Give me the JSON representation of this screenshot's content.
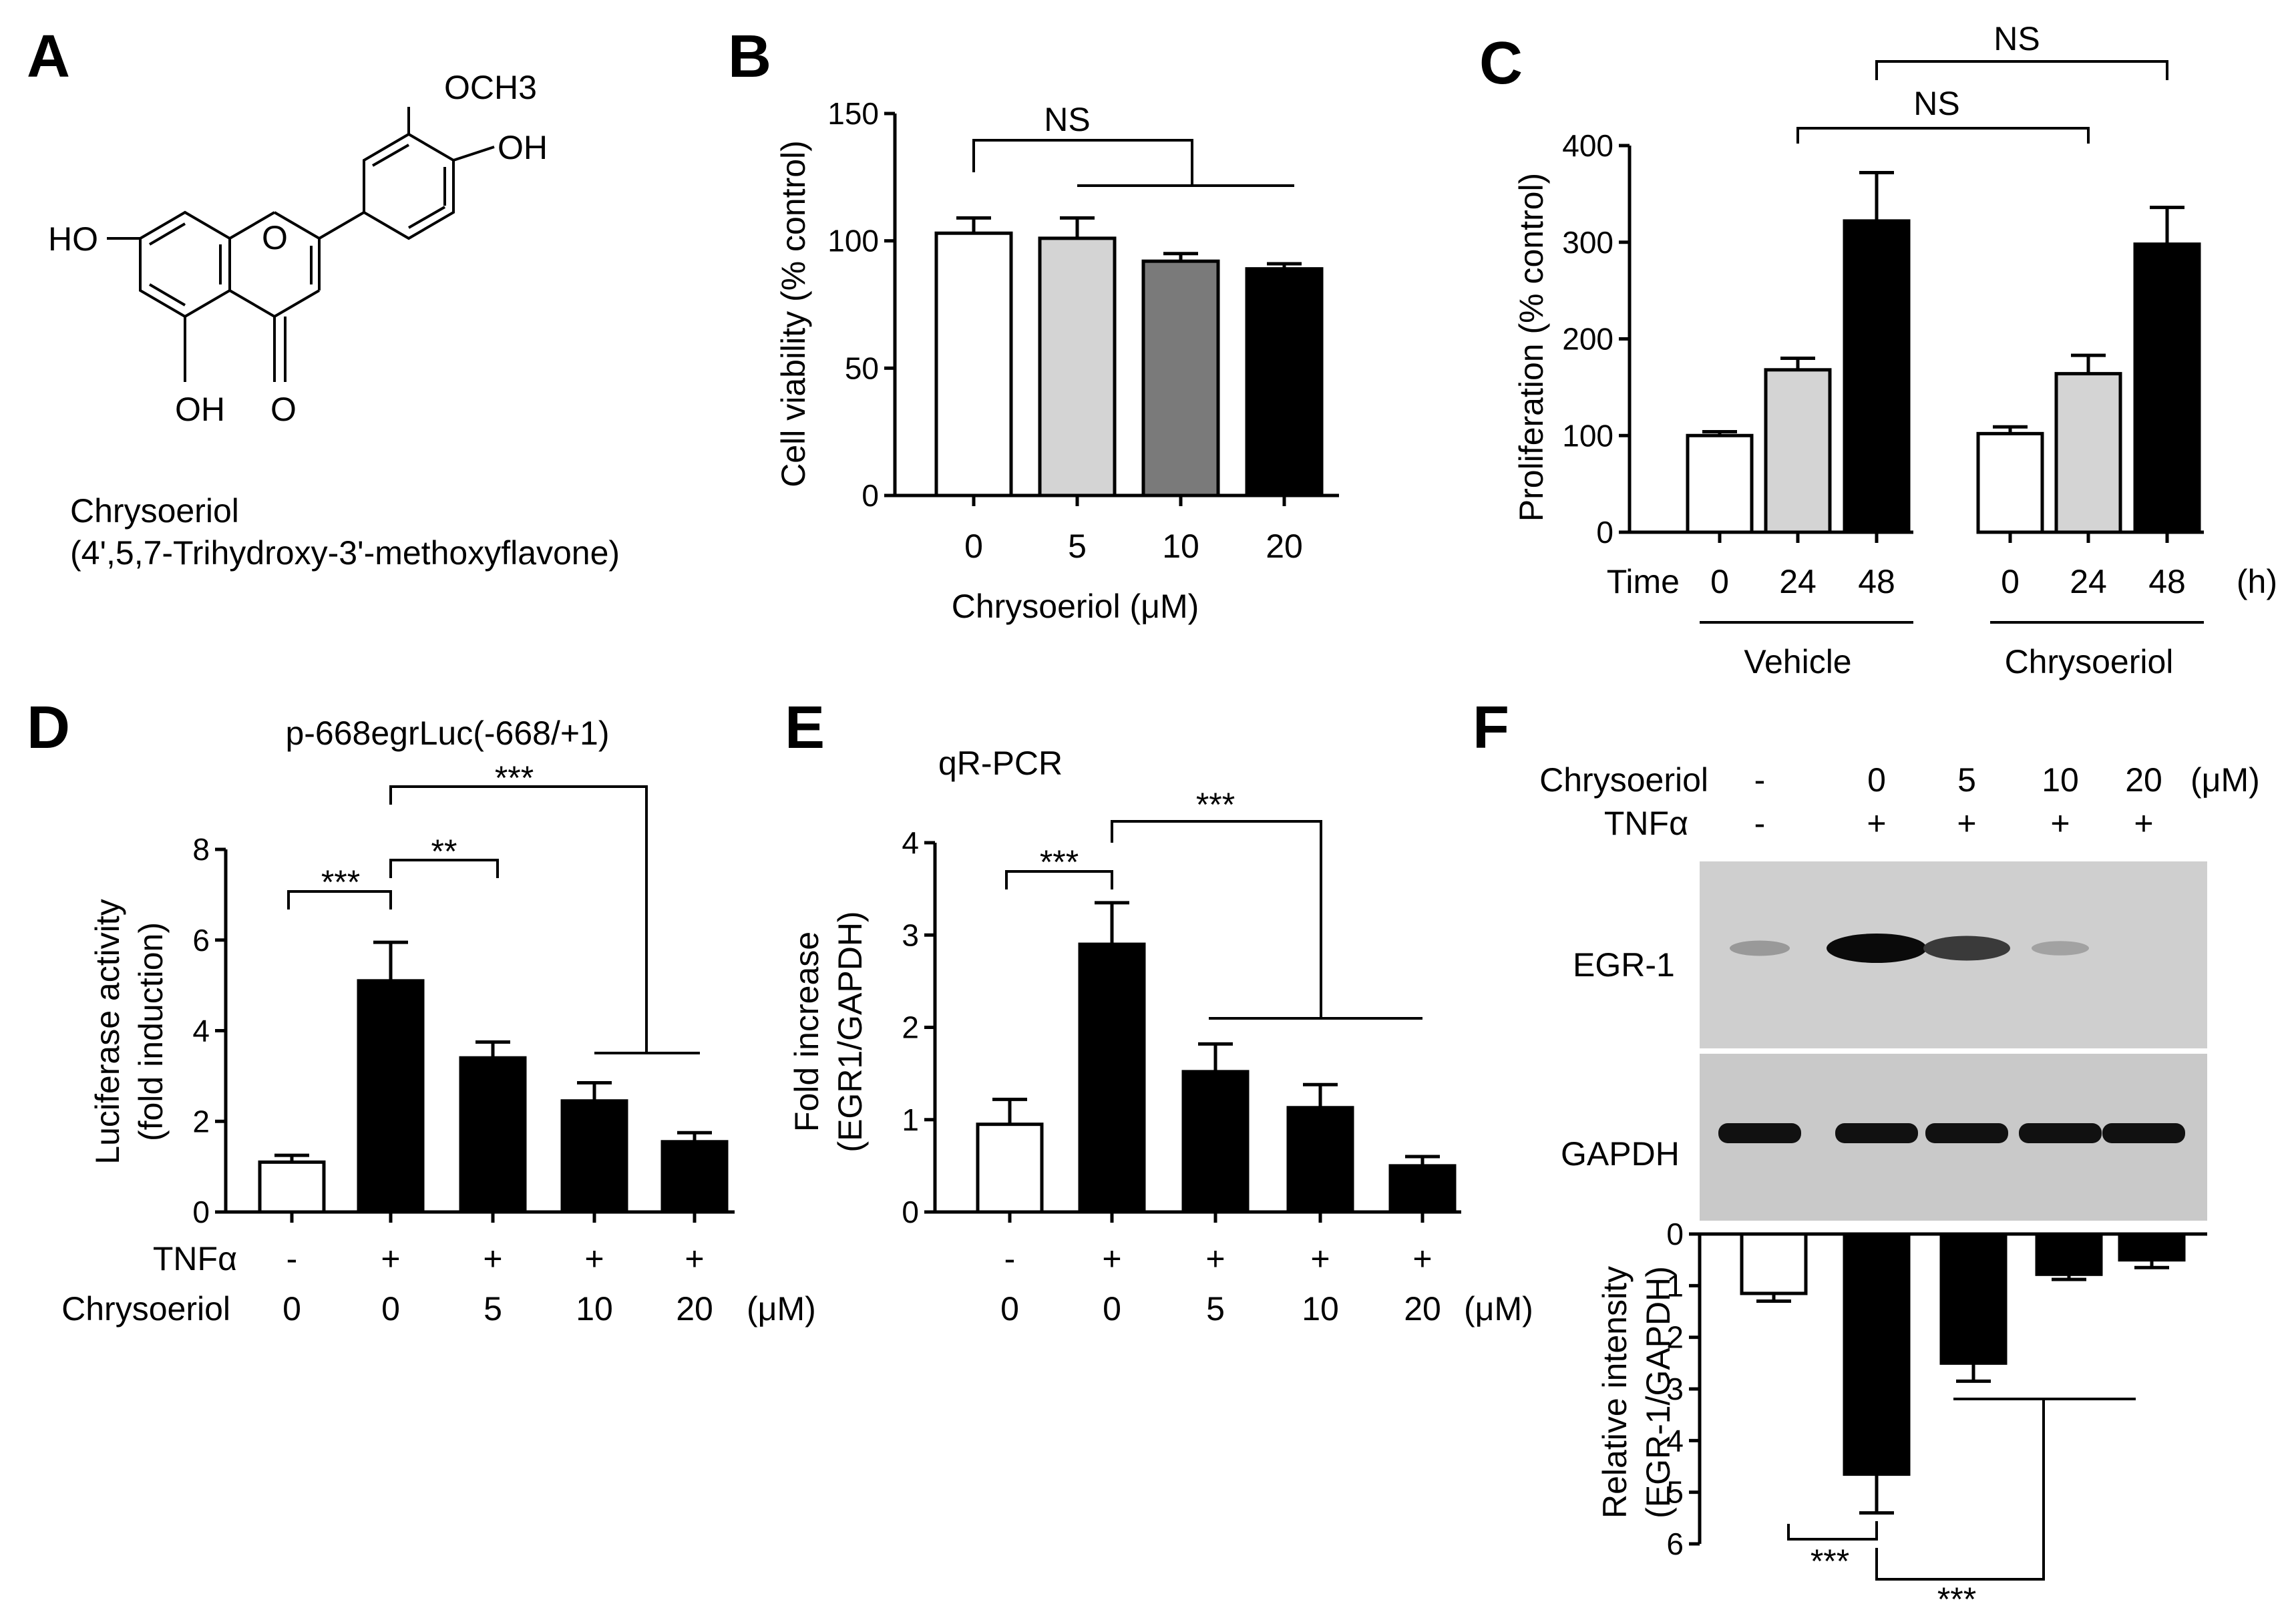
{
  "panels": {
    "A": "A",
    "B": "B",
    "C": "C",
    "D": "D",
    "E": "E",
    "F": "F"
  },
  "colors": {
    "white": "#ffffff",
    "lightgray": "#d4d4d4",
    "darkgray": "#7a7a7a",
    "black": "#000000"
  },
  "structure": {
    "och3": "OCH3",
    "oh_top": "OH",
    "ho_left": "HO",
    "o_ring": "O",
    "oh_bottom": "OH",
    "o_carbonyl": "O",
    "name": "Chrysoeriol",
    "iupac": "(4',5,7-Trihydroxy-3'-methoxyflavone)"
  },
  "chart_data": [
    {
      "panel": "B",
      "type": "bar",
      "categories": [
        "0",
        "5",
        "10",
        "20"
      ],
      "values": [
        103,
        101,
        92,
        89
      ],
      "errors": [
        6,
        8,
        3,
        2
      ],
      "fills": [
        "white",
        "lightgray",
        "darkgray",
        "black"
      ],
      "ylabel": "Cell viability (% control)",
      "xlabel": "Chrysoeriol (μM)",
      "yticks": [
        "0",
        "50",
        "100",
        "150"
      ],
      "ylim": [
        0,
        150
      ],
      "annotations": [
        "NS"
      ]
    },
    {
      "panel": "C",
      "type": "bar",
      "categories": [
        "0",
        "24",
        "48",
        "0",
        "24",
        "48"
      ],
      "values": [
        100,
        168,
        322,
        102,
        164,
        298
      ],
      "errors": [
        4,
        12,
        50,
        7,
        19,
        38
      ],
      "fills": [
        "white",
        "lightgray",
        "black",
        "white",
        "lightgray",
        "black"
      ],
      "ylabel": "Proliferation (% control)",
      "time_label": "Time",
      "time_unit": "(h)",
      "groups": [
        "Vehicle",
        "Chrysoeriol"
      ],
      "yticks": [
        "0",
        "100",
        "200",
        "300",
        "400"
      ],
      "ylim": [
        0,
        400
      ],
      "annotations": [
        "NS",
        "NS"
      ]
    },
    {
      "panel": "D",
      "type": "bar",
      "title": "p-668egrLuc(-668/+1)",
      "tnf": [
        "-",
        "+",
        "+",
        "+",
        "+"
      ],
      "categories": [
        "0",
        "0",
        "5",
        "10",
        "20"
      ],
      "values": [
        1.1,
        5.1,
        3.4,
        2.45,
        1.55
      ],
      "errors": [
        0.15,
        0.85,
        0.35,
        0.4,
        0.2
      ],
      "fills": [
        "white",
        "black",
        "black",
        "black",
        "black"
      ],
      "ylabel": "Luciferase activity",
      "ylabel2": "(fold induction)",
      "row1": "TNFα",
      "row2": "Chrysoeriol",
      "unit": "(μM)",
      "yticks": [
        "0",
        "2",
        "4",
        "6",
        "8"
      ],
      "ylim": [
        0,
        8
      ],
      "annotations": [
        "***",
        "**",
        "***"
      ]
    },
    {
      "panel": "E",
      "type": "bar",
      "title": "qR-PCR",
      "tnf": [
        "-",
        "+",
        "+",
        "+",
        "+"
      ],
      "categories": [
        "0",
        "0",
        "5",
        "10",
        "20"
      ],
      "values": [
        0.95,
        2.9,
        1.52,
        1.13,
        0.5
      ],
      "errors": [
        0.27,
        0.45,
        0.3,
        0.25,
        0.1
      ],
      "fills": [
        "white",
        "black",
        "black",
        "black",
        "black"
      ],
      "ylabel": "Fold increase",
      "ylabel2": "(EGR1/GAPDH)",
      "unit": "(μM)",
      "yticks": [
        "0",
        "1",
        "2",
        "3",
        "4"
      ],
      "ylim": [
        0,
        4
      ],
      "annotations": [
        "***",
        "***"
      ]
    },
    {
      "panel": "F",
      "type": "bar",
      "header_row1": "Chrysoeriol",
      "header_row2": "TNFα",
      "doses": [
        "-",
        "0",
        "5",
        "10",
        "20"
      ],
      "tnf": [
        "-",
        "+",
        "+",
        "+",
        "+"
      ],
      "unit": "(μM)",
      "blot_labels": [
        "EGR-1",
        "GAPDH"
      ],
      "egr1_band_intensity": [
        0.25,
        1.0,
        0.75,
        0.2,
        0.0
      ],
      "values": [
        1.15,
        4.65,
        2.5,
        0.78,
        0.5
      ],
      "errors": [
        0.15,
        0.75,
        0.35,
        0.1,
        0.15
      ],
      "fills": [
        "white",
        "black",
        "black",
        "black",
        "black"
      ],
      "ylabel": "Relative intensity",
      "ylabel2": "(EGR-1/GAPDH)",
      "yticks": [
        "0",
        "1",
        "2",
        "3",
        "4",
        "5",
        "6"
      ],
      "ylim": [
        0,
        6
      ],
      "y_inverted": true,
      "annotations": [
        "***",
        "***"
      ]
    }
  ]
}
